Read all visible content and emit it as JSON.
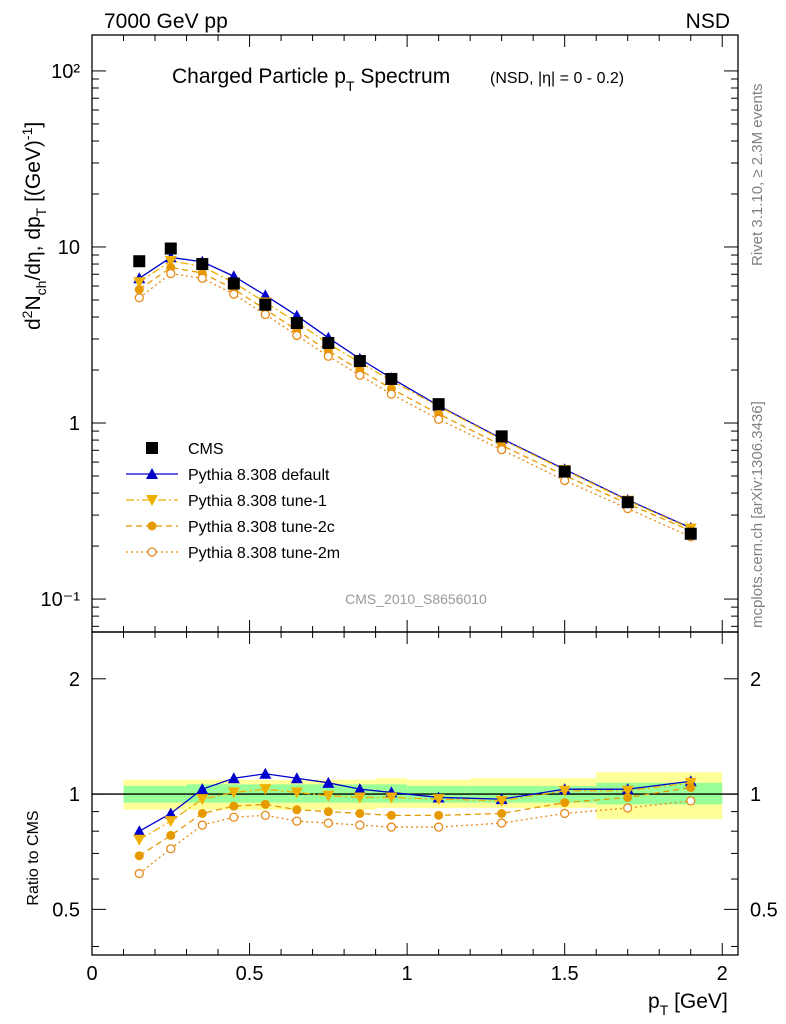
{
  "header": {
    "left": "7000 GeV pp",
    "right": "NSD",
    "title_main": "Charged Particle p",
    "title_sub": "T",
    "title_main2": " Spectrum",
    "title_cond": "(NSD, |η| =   0 - 0.2)",
    "analysis_id": "CMS_2010_S8656010",
    "side_rivet": "Rivet 3.1.10, ≥ 2.3M events",
    "side_mcplots": "mcplots.cern.ch [arXiv:1306.3436]"
  },
  "axes": {
    "ylabel_top": "d²N_ch/dη, dp_T [(GeV)⁻¹]",
    "ylabel_bottom": "Ratio to CMS",
    "xlabel": "p_T [GeV]",
    "top_ticks": [
      "10⁻¹",
      "1",
      "10",
      "10²"
    ],
    "ratio_ticks": [
      "0.5",
      "1",
      "2"
    ],
    "x_ticks": [
      "0",
      "0.5",
      "1",
      "1.5",
      "2"
    ]
  },
  "legend": [
    {
      "label": "CMS",
      "marker": "square",
      "color": "#000000",
      "line": "none"
    },
    {
      "label": "Pythia 8.308 default",
      "marker": "triangle-up",
      "color": "#0000cc",
      "line": "solid"
    },
    {
      "label": "Pythia 8.308 tune-1",
      "marker": "triangle-down",
      "color": "#f0b000",
      "line": "dashdot"
    },
    {
      "label": "Pythia 8.308 tune-2c",
      "marker": "circle",
      "color": "#e69a00",
      "line": "dashed"
    },
    {
      "label": "Pythia 8.308 tune-2m",
      "marker": "circle-open",
      "color": "#e68a1a",
      "line": "dotted"
    }
  ],
  "chart_data": {
    "type": "scatter",
    "x_scale": "linear",
    "y_scale": "log",
    "xlim": [
      0,
      2.05
    ],
    "ylim": [
      0.065,
      160
    ],
    "ratio_ylim": [
      0.38,
      2.65
    ],
    "ratio_scale": "log",
    "x": [
      0.15,
      0.25,
      0.35,
      0.45,
      0.55,
      0.65,
      0.75,
      0.85,
      0.95,
      1.1,
      1.3,
      1.5,
      1.7,
      1.9
    ],
    "cms_x": [
      0.15,
      0.25,
      0.35,
      0.45,
      0.55,
      0.65,
      0.75,
      0.85,
      0.95,
      1.1,
      1.3,
      1.5,
      1.7,
      1.9
    ],
    "cms_values": [
      8.3,
      9.8,
      8.0,
      6.2,
      4.7,
      3.7,
      2.85,
      2.25,
      1.78,
      1.28,
      0.84,
      0.53,
      0.355,
      0.235
    ],
    "series": [
      {
        "name": "Pythia 8.308 default",
        "ratio": [
          0.8,
          0.89,
          1.03,
          1.1,
          1.13,
          1.1,
          1.07,
          1.03,
          1.01,
          0.98,
          0.97,
          1.03,
          1.03,
          1.08
        ]
      },
      {
        "name": "Pythia 8.308 tune-1",
        "ratio": [
          0.76,
          0.85,
          0.97,
          1.01,
          1.03,
          1.01,
          0.99,
          0.98,
          0.98,
          0.97,
          0.96,
          1.02,
          1.02,
          1.07
        ]
      },
      {
        "name": "Pythia 8.308 tune-2c",
        "ratio": [
          0.69,
          0.78,
          0.89,
          0.93,
          0.94,
          0.91,
          0.9,
          0.89,
          0.88,
          0.88,
          0.89,
          0.95,
          0.98,
          1.04
        ]
      },
      {
        "name": "Pythia 8.308 tune-2m",
        "ratio": [
          0.62,
          0.72,
          0.83,
          0.87,
          0.88,
          0.85,
          0.84,
          0.83,
          0.82,
          0.82,
          0.84,
          0.89,
          0.92,
          0.96
        ]
      }
    ],
    "cms_band_green": [
      {
        "x": [
          0.1,
          0.3
        ],
        "lo": 0.95,
        "hi": 1.05
      },
      {
        "x": [
          0.3,
          0.9
        ],
        "lo": 0.95,
        "hi": 1.06
      },
      {
        "x": [
          0.9,
          1.0
        ],
        "lo": 0.95,
        "hi": 1.06
      },
      {
        "x": [
          1.0,
          1.2
        ],
        "lo": 0.95,
        "hi": 1.05
      },
      {
        "x": [
          1.2,
          1.6
        ],
        "lo": 0.95,
        "hi": 1.05
      },
      {
        "x": [
          1.6,
          2.0
        ],
        "lo": 0.94,
        "hi": 1.07
      }
    ],
    "cms_band_yellow": [
      {
        "x": [
          0.1,
          0.3
        ],
        "lo": 0.91,
        "hi": 1.09
      },
      {
        "x": [
          0.3,
          0.9
        ],
        "lo": 0.91,
        "hi": 1.09
      },
      {
        "x": [
          0.9,
          1.0
        ],
        "lo": 0.92,
        "hi": 1.1
      },
      {
        "x": [
          1.0,
          1.2
        ],
        "lo": 0.92,
        "hi": 1.09
      },
      {
        "x": [
          1.2,
          1.6
        ],
        "lo": 0.92,
        "hi": 1.1
      },
      {
        "x": [
          1.6,
          2.0
        ],
        "lo": 0.86,
        "hi": 1.14
      }
    ]
  }
}
